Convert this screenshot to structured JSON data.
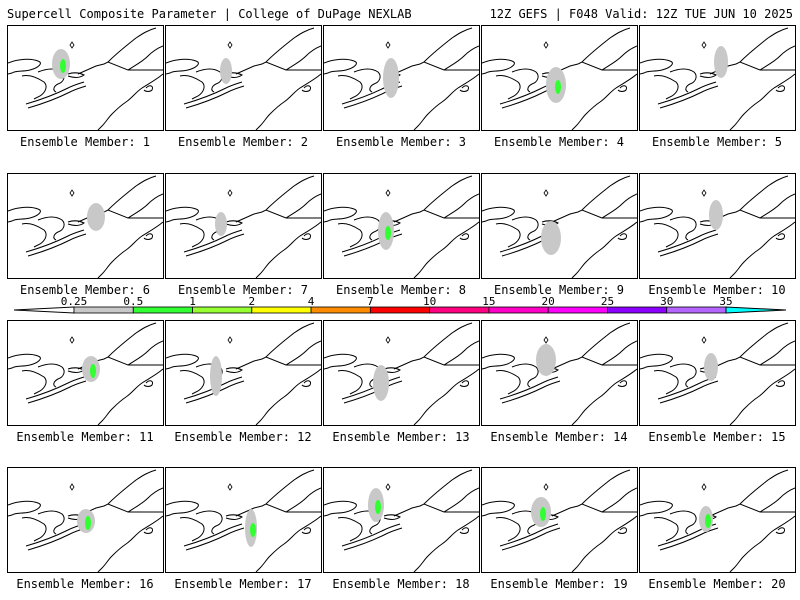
{
  "header": {
    "left": "Supercell Composite Parameter | College of DuPage NEXLAB",
    "right": "12Z GEFS | F048 Valid: 12Z TUE JUN 10 2025"
  },
  "label_prefix": "Ensemble Member: ",
  "members": [
    {
      "id": "1"
    },
    {
      "id": "2"
    },
    {
      "id": "3"
    },
    {
      "id": "4"
    },
    {
      "id": "5"
    },
    {
      "id": "6"
    },
    {
      "id": "7"
    },
    {
      "id": "8"
    },
    {
      "id": "9"
    },
    {
      "id": "10"
    },
    {
      "id": "11"
    },
    {
      "id": "12"
    },
    {
      "id": "13"
    },
    {
      "id": "14"
    },
    {
      "id": "15"
    },
    {
      "id": "16"
    },
    {
      "id": "17"
    },
    {
      "id": "18"
    },
    {
      "id": "19"
    },
    {
      "id": "20"
    }
  ],
  "colorbar": {
    "levels": [
      "0.25",
      "0.5",
      "1",
      "2",
      "4",
      "7",
      "10",
      "15",
      "20",
      "25",
      "30",
      "35"
    ],
    "colors": [
      "#c8c8c8",
      "#32ff32",
      "#96ff32",
      "#ffff00",
      "#ff8c00",
      "#ff0000",
      "#ff0080",
      "#ff00c8",
      "#ff00ff",
      "#8c00ff",
      "#b464ff",
      "#00ffff"
    ]
  },
  "colors": {
    "coastline": "#000000",
    "low_scp": "#c8c8c8",
    "mid_scp": "#32ff32"
  },
  "icon_names": [
    "arrow-left-icon",
    "arrow-right-icon"
  ]
}
